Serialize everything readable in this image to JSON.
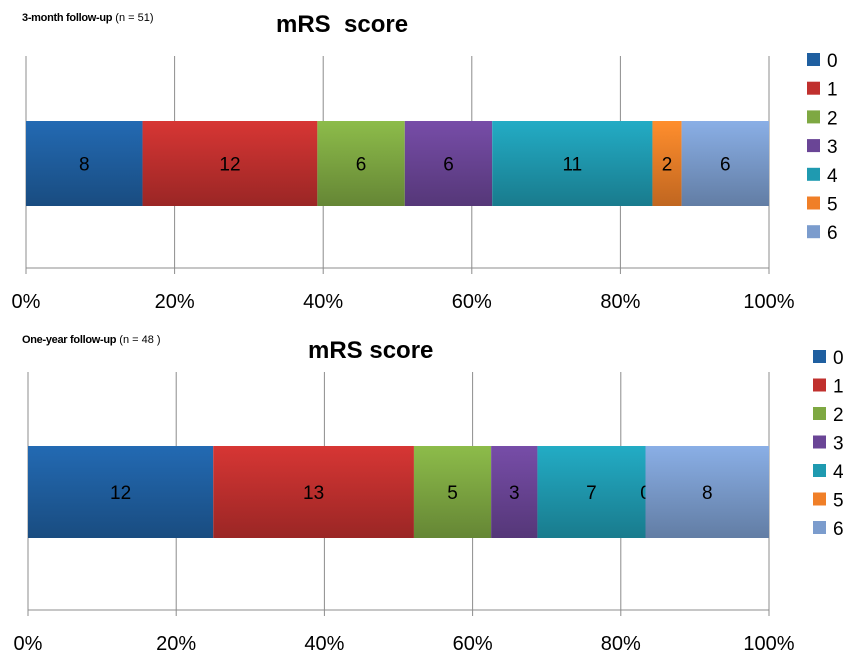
{
  "chart_data": [
    {
      "type": "bar",
      "orientation": "horizontal-stacked-100%",
      "title": "mRS  score",
      "subtitle_bold": "3-month follow-up",
      "subtitle_rest": " (n = 51)",
      "categories": [
        "3-month follow-up"
      ],
      "series": [
        {
          "name": "0",
          "values": [
            8
          ],
          "color": "#1f5fa0"
        },
        {
          "name": "1",
          "values": [
            12
          ],
          "color": "#c0302e"
        },
        {
          "name": "2",
          "values": [
            6
          ],
          "color": "#7ea842"
        },
        {
          "name": "3",
          "values": [
            6
          ],
          "color": "#6a4596"
        },
        {
          "name": "4",
          "values": [
            11
          ],
          "color": "#1f9ab0"
        },
        {
          "name": "5",
          "values": [
            2
          ],
          "color": "#f07f28"
        },
        {
          "name": "6",
          "values": [
            6
          ],
          "color": "#7b9ccd"
        }
      ],
      "xlim": [
        0,
        100
      ],
      "x_ticks": [
        "0%",
        "20%",
        "40%",
        "60%",
        "80%",
        "100%"
      ],
      "grid": "vertical",
      "legend_position": "right"
    },
    {
      "type": "bar",
      "orientation": "horizontal-stacked-100%",
      "title": "mRS score",
      "subtitle_bold": "One-year follow-up",
      "subtitle_rest": " (n = 48 )",
      "categories": [
        "One-year follow-up"
      ],
      "series": [
        {
          "name": "0",
          "values": [
            12
          ],
          "color": "#1f5fa0"
        },
        {
          "name": "1",
          "values": [
            13
          ],
          "color": "#c0302e"
        },
        {
          "name": "2",
          "values": [
            5
          ],
          "color": "#7ea842"
        },
        {
          "name": "3",
          "values": [
            3
          ],
          "color": "#6a4596"
        },
        {
          "name": "4",
          "values": [
            7
          ],
          "color": "#1f9ab0"
        },
        {
          "name": "5",
          "values": [
            0
          ],
          "color": "#f07f28"
        },
        {
          "name": "6",
          "values": [
            8
          ],
          "color": "#7b9ccd"
        }
      ],
      "xlim": [
        0,
        100
      ],
      "x_ticks": [
        "0%",
        "20%",
        "40%",
        "60%",
        "80%",
        "100%"
      ],
      "grid": "vertical",
      "legend_position": "right"
    }
  ]
}
